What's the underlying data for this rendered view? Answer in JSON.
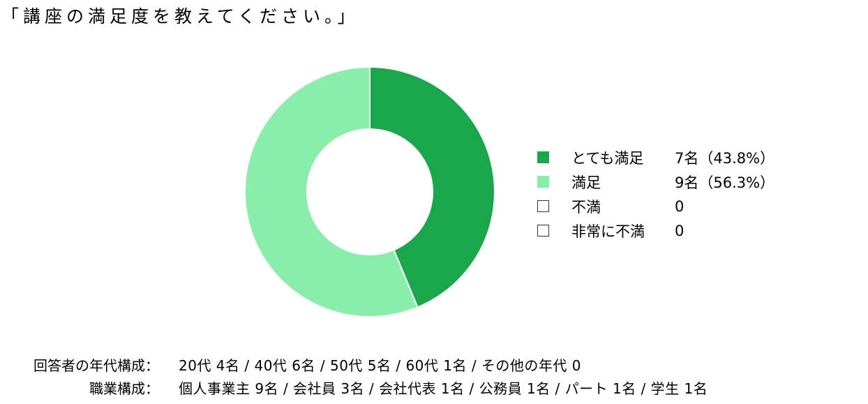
{
  "title": "「講座の満足度を教えてください。」",
  "chart_data": {
    "type": "pie",
    "donut": true,
    "title": "「講座の満足度を教えてください。」",
    "categories": [
      "とても満足",
      "満足",
      "不満",
      "非常に不満"
    ],
    "values": [
      7,
      9,
      0,
      0
    ],
    "value_labels": [
      "7名（43.8%）",
      "9名（56.3%）",
      "0",
      "0"
    ],
    "colors": [
      "#1aa64b",
      "#88eeaa",
      "#ffffff",
      "#ffffff"
    ],
    "legend_position": "right",
    "start_angle": "top",
    "direction": "clockwise"
  },
  "footer": {
    "age_label": "回答者の年代構成：",
    "age_value": "20代 4名 / 40代 6名 / 50代 5名 / 60代 1名 / その他の年代 0",
    "job_label": "職業構成：",
    "job_value": "個人事業主 9名 / 会社員 3名 / 会社代表 1名 / 公務員 1名 / パート 1名 / 学生 1名"
  }
}
